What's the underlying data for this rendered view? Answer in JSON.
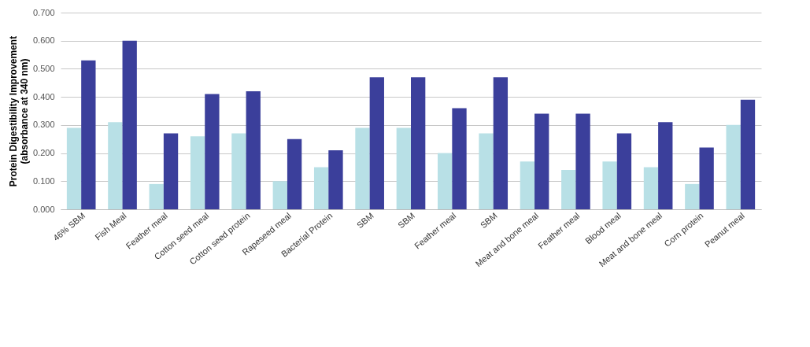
{
  "chart_data": {
    "type": "bar",
    "ylabel": "Protein Digestibility Improvement\n(absorbance at 340 nm)",
    "categories": [
      "46% SBM",
      "Fish Meal",
      "Feather meal",
      "Cotton seed meal",
      "Cotton seed protein",
      "Rapeseed meal",
      "Bacterial Protein",
      "SBM",
      "SBM",
      "Feather meal",
      "SBM",
      "Meat and bone meal",
      "Feather meal",
      "Blood meal",
      "Meat and bone meal",
      "Corn protein",
      "Peanut meal"
    ],
    "series": [
      {
        "color": "#b8e0e6",
        "values": [
          0.29,
          0.31,
          0.09,
          0.26,
          0.27,
          0.1,
          0.15,
          0.29,
          0.29,
          0.2,
          0.27,
          0.17,
          0.14,
          0.17,
          0.15,
          0.09,
          0.3
        ]
      },
      {
        "color": "#3b3f9b",
        "values": [
          0.53,
          0.6,
          0.27,
          0.41,
          0.42,
          0.25,
          0.21,
          0.47,
          0.47,
          0.36,
          0.47,
          0.34,
          0.34,
          0.27,
          0.31,
          0.22,
          0.39
        ]
      }
    ],
    "ylim": [
      0,
      0.7
    ],
    "yticks": [
      {
        "value": 0,
        "label": "0.000"
      },
      {
        "value": 0.1,
        "label": "0.100"
      },
      {
        "value": 0.2,
        "label": "0.200"
      },
      {
        "value": 0.3,
        "label": "0.300"
      },
      {
        "value": 0.4,
        "label": "0.400"
      },
      {
        "value": 0.5,
        "label": "0.500"
      },
      {
        "value": 0.6,
        "label": "0.600"
      },
      {
        "value": 0.7,
        "label": "0.700"
      }
    ],
    "grid": "y"
  }
}
